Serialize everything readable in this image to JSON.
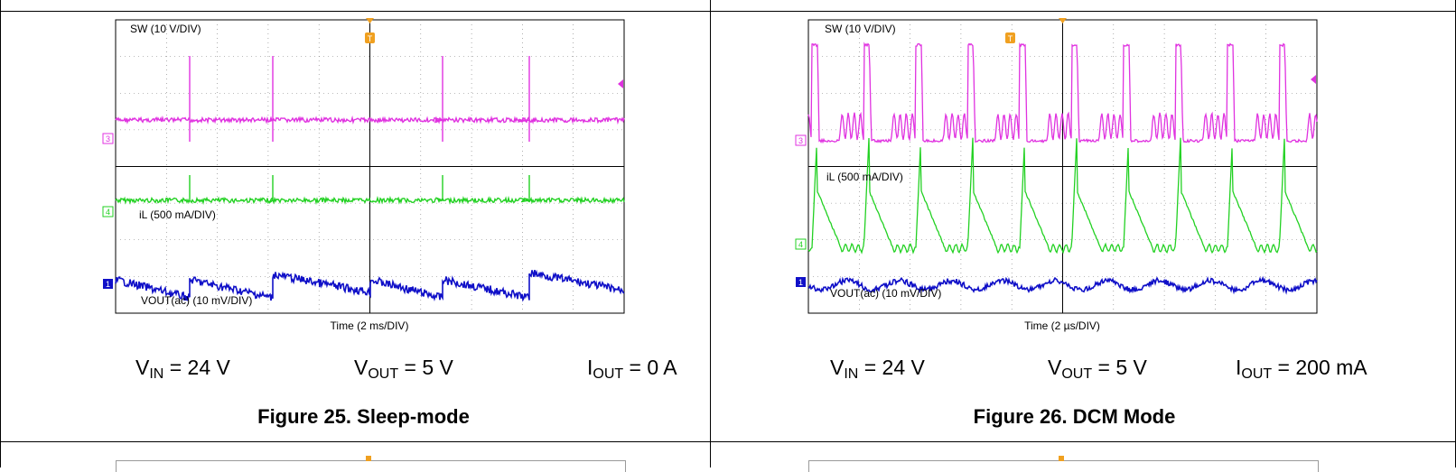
{
  "figures": [
    {
      "id": "fig25",
      "caption": "Figure 25. Sleep-mode",
      "ch_sw_label": "SW (10 V/DIV)",
      "ch_il_label": "iL (500 mA/DIV)",
      "ch_vout_label": "VOUT(ac) (10 mV/DIV)",
      "time_label": "Time (2 ms/DIV)",
      "marker_sw": "3",
      "marker_il": "4",
      "marker_vout": "1",
      "trigger_marker": "T",
      "conditions": {
        "vin": "V",
        "vin_sub": "IN",
        "vin_val": " = 24 V",
        "vout": "V",
        "vout_sub": "OUT",
        "vout_val": " = 5 V",
        "iout": "I",
        "iout_sub": "OUT",
        "iout_val": " = 0 A"
      },
      "colors": {
        "sw": "#e032e0",
        "il": "#22d122",
        "vout": "#1010c8",
        "grid": "#7a7a7a"
      }
    },
    {
      "id": "fig26",
      "caption": "Figure 26. DCM Mode",
      "ch_sw_label": "SW (10 V/DIV)",
      "ch_il_label": "iL (500 mA/DIV)",
      "ch_vout_label": "VOUT(ac) (10 mV/DIV)",
      "time_label": "Time (2 µs/DIV)",
      "marker_sw": "3",
      "marker_il": "4",
      "marker_vout": "1",
      "trigger_marker": "T",
      "conditions": {
        "vin": "V",
        "vin_sub": "IN",
        "vin_val": " = 24 V",
        "vout": "V",
        "vout_sub": "OUT",
        "vout_val": " = 5 V",
        "iout": "I",
        "iout_sub": "OUT",
        "iout_val": " = 200 mA"
      },
      "colors": {
        "sw": "#e032e0",
        "il": "#22d122",
        "vout": "#1010c8",
        "grid": "#7a7a7a"
      }
    }
  ]
}
